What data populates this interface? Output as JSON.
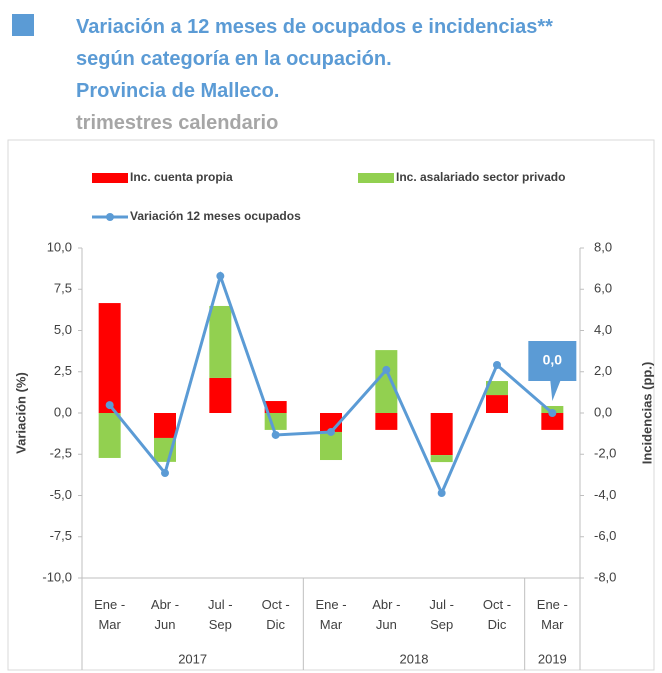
{
  "chart_data": {
    "type": "bar_line",
    "title": [
      "Variación a 12 meses de ocupados e incidencias**",
      "según categoría en la ocupación.",
      "Provincia de Malleco."
    ],
    "subtitle": "trimestres calendario",
    "ylabel": "Variación (%)",
    "y2label": "Incidencias (pp.)",
    "categories": [
      "Ene - Mar",
      "Abr - Jun",
      "Jul - Sep",
      "Oct - Dic",
      "Ene - Mar",
      "Abr - Jun",
      "Jul - Sep",
      "Oct - Dic",
      "Ene - Mar"
    ],
    "groups": [
      {
        "name": "2017",
        "count": 4
      },
      {
        "name": "2018",
        "count": 4
      },
      {
        "name": "2019",
        "count": 1
      }
    ],
    "series": [
      {
        "name": "Inc. cuenta propia",
        "type": "bar",
        "axis": "y2",
        "color": "#ff0000",
        "values": [
          5.33,
          -1.21,
          1.7,
          0.58,
          -0.92,
          -0.82,
          -2.04,
          0.87,
          -0.82
        ]
      },
      {
        "name": "Inc. asalariado sector privado",
        "type": "bar",
        "axis": "y2",
        "color": "#92d050",
        "values": [
          -2.18,
          -1.16,
          3.49,
          -0.82,
          -1.36,
          3.05,
          -0.34,
          0.68,
          0.34
        ]
      },
      {
        "name": "Variación 12 meses ocupados",
        "type": "line",
        "axis": "y",
        "color": "#5b9bd5",
        "values": [
          0.48,
          -3.64,
          8.3,
          -1.33,
          -1.15,
          2.61,
          -4.85,
          2.91,
          0
        ],
        "value_labels": [
          null,
          null,
          null,
          null,
          null,
          null,
          null,
          null,
          "0,0"
        ]
      }
    ],
    "ylim": [
      -10,
      10
    ],
    "yticks": [
      {
        "value": -10,
        "label": "-10,0"
      },
      {
        "value": -7.5,
        "label": "-7,5"
      },
      {
        "value": -5,
        "label": "-5,0"
      },
      {
        "value": -2.5,
        "label": "-2,5"
      },
      {
        "value": 0,
        "label": "0,0"
      },
      {
        "value": 2.5,
        "label": "2,5"
      },
      {
        "value": 5,
        "label": "5,0"
      },
      {
        "value": 7.5,
        "label": "7,5"
      },
      {
        "value": 10,
        "label": "10,0"
      }
    ],
    "y2lim": [
      -8,
      8
    ],
    "y2ticks": [
      {
        "value": -8,
        "label": "-8,0"
      },
      {
        "value": -6,
        "label": "-6,0"
      },
      {
        "value": -4,
        "label": "-4,0"
      },
      {
        "value": -2,
        "label": "-2,0"
      },
      {
        "value": 0,
        "label": "0,0"
      },
      {
        "value": 2,
        "label": "2,0"
      },
      {
        "value": 4,
        "label": "4,0"
      },
      {
        "value": 6,
        "label": "6,0"
      },
      {
        "value": 8,
        "label": "8,0"
      }
    ],
    "grid": false
  }
}
